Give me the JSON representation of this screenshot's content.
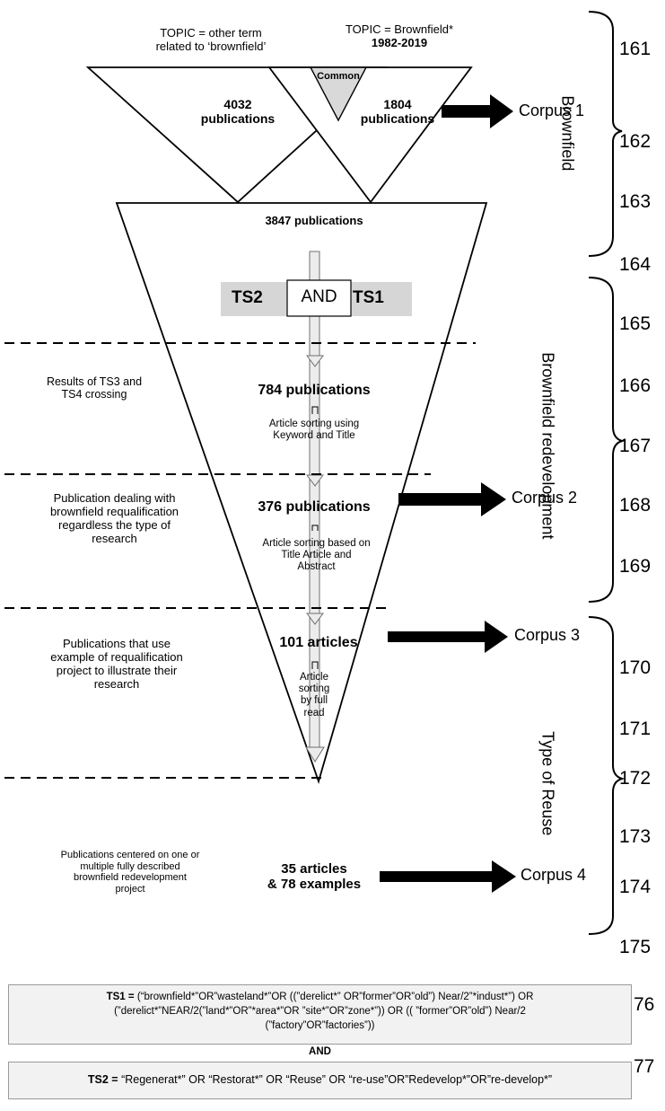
{
  "top": {
    "topic_other_line1": "TOPIC = other term",
    "topic_other_line2": "related to ‘brownfield’",
    "topic_brown_line1": "TOPIC = Brownfield*",
    "years": "1982-2019",
    "common": "Common",
    "left_count_line1": "4032",
    "left_count_line2": "publications",
    "right_count_line1": "1804",
    "right_count_line2": "publications"
  },
  "funnel": {
    "merged": "3847 publications",
    "ts2": "TS2",
    "and": "AND",
    "ts1": "TS1",
    "step1": "784 publications",
    "sort1_line1": "Article sorting using",
    "sort1_line2": "Keyword and Title",
    "step2": "376 publications",
    "sort2_line1": "Article sorting based on",
    "sort2_line2": "Title Article and",
    "sort2_line3": "Abstract",
    "step3": "101 articles",
    "sort3_line1": "Article",
    "sort3_line2": "sorting",
    "sort3_line3": "by full",
    "sort3_line4": "read",
    "final_line1": "35 articles",
    "final_line2": "& 78 examples"
  },
  "left_notes": {
    "n1_line1": "Results of TS3 and",
    "n1_line2": "TS4 crossing",
    "n2_line1": "Publication dealing with",
    "n2_line2": "brownfield requalification",
    "n2_line3": "regardless the type of",
    "n2_line4": "research",
    "n3_line1": "Publications that use",
    "n3_line2": "example of requalification",
    "n3_line3": "project to illustrate their",
    "n3_line4": "research",
    "n4_line1": "Publications centered on one or",
    "n4_line2": "multiple fully described",
    "n4_line3": "brownfield redevelopment",
    "n4_line4": "project"
  },
  "corpus": {
    "c1": "Corpus 1",
    "c2": "Corpus 2",
    "c3": "Corpus 3",
    "c4": "Corpus 4"
  },
  "brackets": {
    "b1": "Brownfield",
    "b2": "Brownfield redevelopment",
    "b3": "Type of Reuse"
  },
  "line_numbers": [
    "161",
    "162",
    "163",
    "164",
    "165",
    "166",
    "167",
    "168",
    "169",
    "170",
    "171",
    "172",
    "173",
    "174",
    "175",
    "76",
    "77"
  ],
  "queries": {
    "ts1_label": "TS1 = ",
    "ts1_line1": "(“brownfield*”OR”wasteland*”OR ((”derelict*” OR”former”OR”old”) Near/2”*indust*”) OR",
    "ts1_line2": "(”derelict*”NEAR/2(”land*”OR”*area*”OR ”site*”OR”zone*”)) OR (( ”former”OR”old”) Near/2",
    "ts1_line3": "(”factory”OR”factories”))",
    "and": "AND",
    "ts2_label": "TS2 = ",
    "ts2_text": "“Regenerat*” OR “Restorat*” OR “Reuse” OR “re-use”OR”Redevelop*”OR”re-develop*”"
  },
  "colors": {
    "gray_fill": "#d9d9d9",
    "band": "#d6d6d6",
    "arrow_fill": "#e6e6e6"
  }
}
